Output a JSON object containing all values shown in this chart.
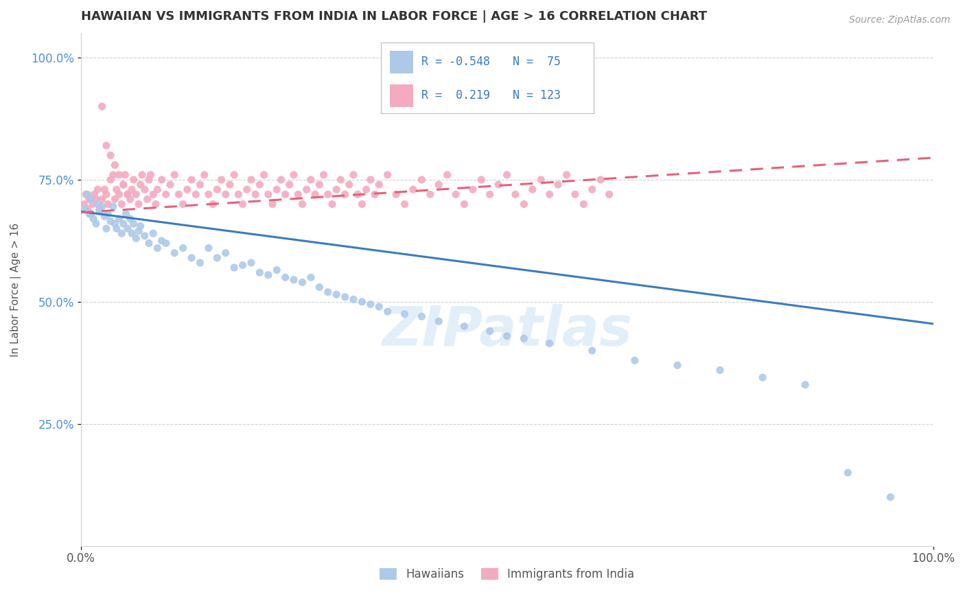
{
  "title": "HAWAIIAN VS IMMIGRANTS FROM INDIA IN LABOR FORCE | AGE > 16 CORRELATION CHART",
  "source_text": "Source: ZipAtlas.com",
  "ylabel": "In Labor Force | Age > 16",
  "xmin": 0.0,
  "xmax": 1.0,
  "ymin": 0.0,
  "ymax": 1.05,
  "xtick_labels": [
    "0.0%",
    "100.0%"
  ],
  "ytick_labels": [
    "25.0%",
    "50.0%",
    "75.0%",
    "100.0%"
  ],
  "ytick_values": [
    0.25,
    0.5,
    0.75,
    1.0
  ],
  "hawaiian_color": "#adc9e8",
  "india_color": "#f4aabf",
  "hawaiian_line_color": "#3a7bbf",
  "india_line_color": "#e8607a",
  "legend_R1": "-0.548",
  "legend_N1": "75",
  "legend_R2": "0.219",
  "legend_N2": "123",
  "legend_label1": "Hawaiians",
  "legend_label2": "Immigrants from India",
  "watermark": "ZIPatlas",
  "background_color": "#ffffff",
  "hawaiian_line_x0": 0.0,
  "hawaiian_line_y0": 0.685,
  "hawaiian_line_x1": 1.0,
  "hawaiian_line_y1": 0.455,
  "india_line_x0": 0.0,
  "india_line_y0": 0.683,
  "india_line_x1": 1.0,
  "india_line_y1": 0.795,
  "hawaiian_scatter_x": [
    0.005,
    0.008,
    0.01,
    0.012,
    0.015,
    0.018,
    0.02,
    0.022,
    0.025,
    0.028,
    0.03,
    0.032,
    0.035,
    0.038,
    0.04,
    0.042,
    0.045,
    0.048,
    0.05,
    0.053,
    0.055,
    0.058,
    0.06,
    0.062,
    0.065,
    0.068,
    0.07,
    0.075,
    0.08,
    0.085,
    0.09,
    0.095,
    0.1,
    0.11,
    0.12,
    0.13,
    0.14,
    0.15,
    0.16,
    0.17,
    0.18,
    0.19,
    0.2,
    0.21,
    0.22,
    0.23,
    0.24,
    0.25,
    0.26,
    0.27,
    0.28,
    0.29,
    0.3,
    0.31,
    0.32,
    0.33,
    0.34,
    0.35,
    0.36,
    0.38,
    0.4,
    0.42,
    0.45,
    0.48,
    0.5,
    0.52,
    0.55,
    0.6,
    0.65,
    0.7,
    0.75,
    0.8,
    0.85,
    0.9,
    0.95
  ],
  "hawaiian_scatter_y": [
    0.69,
    0.72,
    0.68,
    0.71,
    0.67,
    0.66,
    0.7,
    0.685,
    0.695,
    0.675,
    0.65,
    0.68,
    0.665,
    0.695,
    0.66,
    0.65,
    0.67,
    0.64,
    0.66,
    0.68,
    0.65,
    0.67,
    0.64,
    0.66,
    0.63,
    0.645,
    0.655,
    0.635,
    0.62,
    0.64,
    0.61,
    0.625,
    0.62,
    0.6,
    0.61,
    0.59,
    0.58,
    0.61,
    0.59,
    0.6,
    0.57,
    0.575,
    0.58,
    0.56,
    0.555,
    0.565,
    0.55,
    0.545,
    0.54,
    0.55,
    0.53,
    0.52,
    0.515,
    0.51,
    0.505,
    0.5,
    0.495,
    0.49,
    0.48,
    0.475,
    0.47,
    0.46,
    0.45,
    0.44,
    0.43,
    0.425,
    0.415,
    0.4,
    0.38,
    0.37,
    0.36,
    0.345,
    0.33,
    0.15,
    0.1
  ],
  "india_scatter_x": [
    0.004,
    0.006,
    0.008,
    0.01,
    0.012,
    0.014,
    0.016,
    0.018,
    0.02,
    0.022,
    0.025,
    0.028,
    0.03,
    0.032,
    0.035,
    0.038,
    0.04,
    0.042,
    0.045,
    0.048,
    0.05,
    0.052,
    0.055,
    0.058,
    0.06,
    0.062,
    0.065,
    0.068,
    0.07,
    0.072,
    0.075,
    0.078,
    0.08,
    0.082,
    0.085,
    0.088,
    0.09,
    0.095,
    0.1,
    0.105,
    0.11,
    0.115,
    0.12,
    0.125,
    0.13,
    0.135,
    0.14,
    0.145,
    0.15,
    0.155,
    0.16,
    0.165,
    0.17,
    0.175,
    0.18,
    0.185,
    0.19,
    0.195,
    0.2,
    0.205,
    0.21,
    0.215,
    0.22,
    0.225,
    0.23,
    0.235,
    0.24,
    0.245,
    0.25,
    0.255,
    0.26,
    0.265,
    0.27,
    0.275,
    0.28,
    0.285,
    0.29,
    0.295,
    0.3,
    0.305,
    0.31,
    0.315,
    0.32,
    0.325,
    0.33,
    0.335,
    0.34,
    0.345,
    0.35,
    0.36,
    0.37,
    0.38,
    0.39,
    0.4,
    0.41,
    0.42,
    0.43,
    0.44,
    0.45,
    0.46,
    0.47,
    0.48,
    0.49,
    0.5,
    0.51,
    0.52,
    0.53,
    0.54,
    0.55,
    0.56,
    0.57,
    0.58,
    0.59,
    0.6,
    0.61,
    0.62,
    0.025,
    0.03,
    0.035,
    0.04,
    0.045,
    0.05,
    0.055
  ],
  "india_scatter_y": [
    0.7,
    0.72,
    0.69,
    0.71,
    0.68,
    0.7,
    0.72,
    0.71,
    0.73,
    0.69,
    0.71,
    0.73,
    0.72,
    0.7,
    0.75,
    0.76,
    0.71,
    0.73,
    0.72,
    0.7,
    0.74,
    0.76,
    0.72,
    0.71,
    0.73,
    0.75,
    0.72,
    0.7,
    0.74,
    0.76,
    0.73,
    0.71,
    0.75,
    0.76,
    0.72,
    0.7,
    0.73,
    0.75,
    0.72,
    0.74,
    0.76,
    0.72,
    0.7,
    0.73,
    0.75,
    0.72,
    0.74,
    0.76,
    0.72,
    0.7,
    0.73,
    0.75,
    0.72,
    0.74,
    0.76,
    0.72,
    0.7,
    0.73,
    0.75,
    0.72,
    0.74,
    0.76,
    0.72,
    0.7,
    0.73,
    0.75,
    0.72,
    0.74,
    0.76,
    0.72,
    0.7,
    0.73,
    0.75,
    0.72,
    0.74,
    0.76,
    0.72,
    0.7,
    0.73,
    0.75,
    0.72,
    0.74,
    0.76,
    0.72,
    0.7,
    0.73,
    0.75,
    0.72,
    0.74,
    0.76,
    0.72,
    0.7,
    0.73,
    0.75,
    0.72,
    0.74,
    0.76,
    0.72,
    0.7,
    0.73,
    0.75,
    0.72,
    0.74,
    0.76,
    0.72,
    0.7,
    0.73,
    0.75,
    0.72,
    0.74,
    0.76,
    0.72,
    0.7,
    0.73,
    0.75,
    0.72,
    0.9,
    0.82,
    0.8,
    0.78,
    0.76,
    0.74,
    0.72
  ]
}
